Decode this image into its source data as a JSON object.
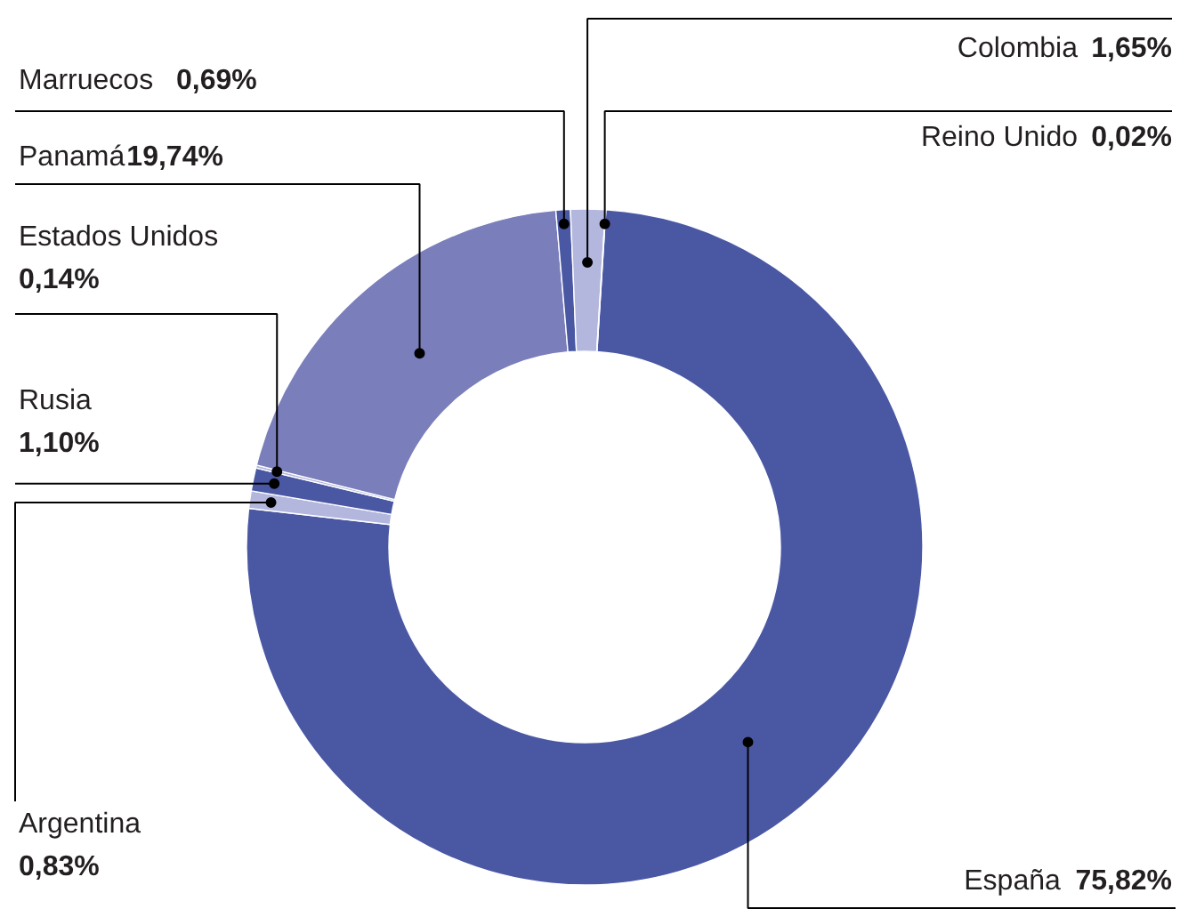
{
  "chart_data": {
    "type": "donut",
    "categories": [
      "España",
      "Argentina",
      "Rusia",
      "Estados Unidos",
      "Panamá",
      "Marruecos",
      "Colombia",
      "Reino Unido"
    ],
    "values": [
      75.82,
      0.83,
      1.1,
      0.14,
      19.74,
      0.69,
      1.65,
      0.02
    ],
    "colors": [
      "#4a58a4",
      "#b3b7de",
      "#4a58a4",
      "#b3b7de",
      "#7a7eba",
      "#4a58a4",
      "#b3b7de",
      "#4a58a4"
    ],
    "value_labels": [
      "75,82%",
      "0,83%",
      "1,10%",
      "0,14%",
      "19,74%",
      "0,69%",
      "1,65%",
      "0,02%"
    ]
  }
}
